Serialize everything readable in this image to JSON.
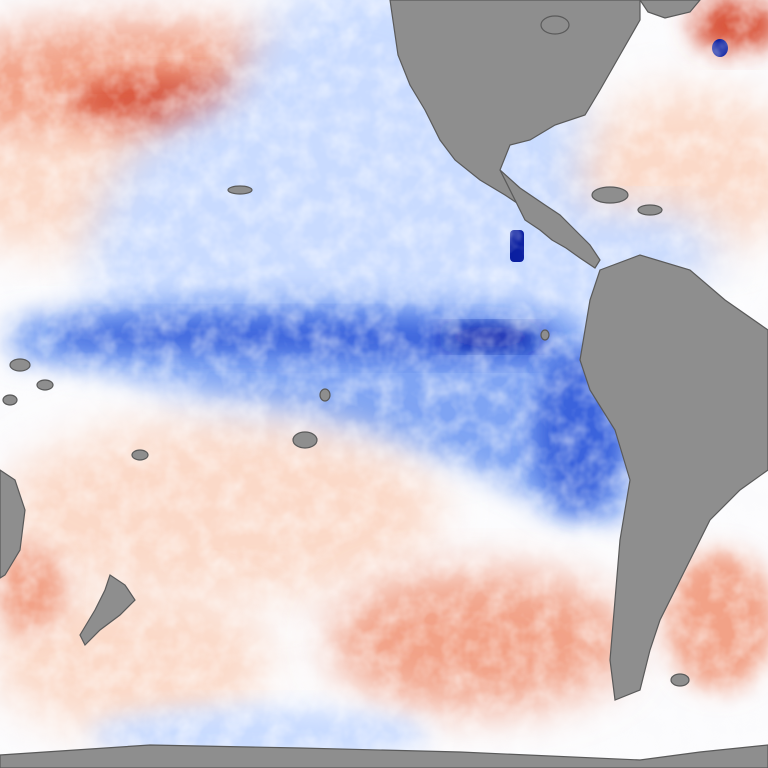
{
  "map": {
    "type": "sea-surface-temperature-anomaly",
    "colors": {
      "ocean_neutral": "#fbfbfd",
      "anomaly_cool_light": "#c9dbff",
      "anomaly_cool_mid": "#7fa4f3",
      "anomaly_cool_strong": "#3a64dc",
      "anomaly_cool_extreme": "#0a1ea0",
      "anomaly_warm_light": "#fbd9c8",
      "anomaly_warm_mid": "#f2a287",
      "anomaly_warm_strong": "#d9543a",
      "anomaly_warm_extreme": "#a81408",
      "land": "#8e8e8e",
      "coastline": "#5a5a5a",
      "sea_ice": "#ffffff"
    },
    "landmasses": [
      "north-america",
      "central-america",
      "south-america",
      "australia",
      "new-zealand",
      "antarctica",
      "greenland-edge",
      "pacific-islands"
    ],
    "features": [
      "equatorial-cool-tongue",
      "north-pacific-warm-band",
      "south-pacific-warm-band",
      "gulf-stream-anomaly",
      "central-american-cool-spot"
    ]
  }
}
